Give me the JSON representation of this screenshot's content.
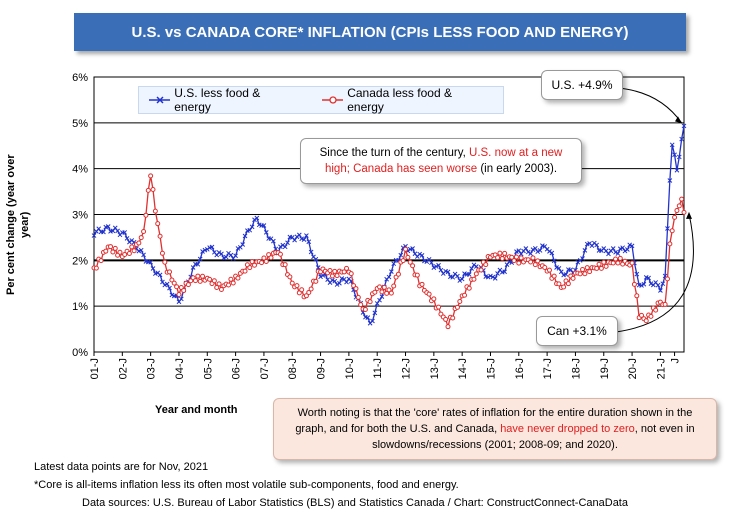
{
  "title": "U.S. vs CANADA CORE* INFLATION (CPIs LESS FOOD AND ENERGY)",
  "callouts": {
    "top_pre": "Since the turn of the century, ",
    "top_red": "U.S. now at a new high; Canada has seen worse",
    "top_post": " (in early 2003).",
    "us": "U.S. +4.9%",
    "canada": "Can +3.1%",
    "bottom_pre": "Worth noting is that the 'core' rates of inflation for the entire duration shown in the graph, and for both the U.S. and Canada, ",
    "bottom_red": "have never dropped to zero",
    "bottom_post": ", not even in slowdowns/recessions (2001; 2008-09; and 2020)."
  },
  "footnotes": {
    "latest": "Latest data points are for Nov, 2021",
    "core": "*Core is all-items inflation less its often most volatile sub-components, food and energy.",
    "sources": "Data sources: U.S. Bureau of Labor Statistics (BLS) and Statistics Canada / Chart: ConstructConnect-CanaData"
  },
  "colors": {
    "us": "#2233cc",
    "canada": "#e03030",
    "title_bg": "#3a6fb7"
  },
  "chart_data": {
    "type": "line",
    "xlabel": "Year and month",
    "ylabel": "Per cent change (year over year)",
    "ylim": [
      0,
      6
    ],
    "yticks": [
      "0%",
      "1%",
      "2%",
      "3%",
      "4%",
      "5%",
      "6%"
    ],
    "xticks": [
      "01-J",
      "02-J",
      "03-J",
      "04-J",
      "05-J",
      "06-J",
      "07-J",
      "08-J",
      "09-J",
      "10-J",
      "11-J",
      "12-J",
      "13-J",
      "14-J",
      "15-J",
      "16-J",
      "17-J",
      "18-J",
      "19-J",
      "20-J",
      "21-J",
      "J"
    ],
    "grid": true,
    "legend": "top-left",
    "reference_line": 2,
    "x_start": "2001-01",
    "x_end": "2021-11",
    "series": [
      {
        "name": "U.S. less food & energy",
        "marker": "x",
        "anchors": [
          [
            "2001-01",
            2.6
          ],
          [
            "2001-07",
            2.7
          ],
          [
            "2002-01",
            2.6
          ],
          [
            "2002-07",
            2.3
          ],
          [
            "2003-01",
            1.9
          ],
          [
            "2003-07",
            1.5
          ],
          [
            "2004-01",
            1.1
          ],
          [
            "2004-07",
            1.8
          ],
          [
            "2005-01",
            2.3
          ],
          [
            "2005-07",
            2.1
          ],
          [
            "2006-01",
            2.1
          ],
          [
            "2006-07",
            2.7
          ],
          [
            "2006-10",
            2.9
          ],
          [
            "2007-01",
            2.7
          ],
          [
            "2007-07",
            2.2
          ],
          [
            "2008-01",
            2.5
          ],
          [
            "2008-07",
            2.5
          ],
          [
            "2009-01",
            1.7
          ],
          [
            "2009-07",
            1.5
          ],
          [
            "2010-01",
            1.6
          ],
          [
            "2010-07",
            0.9
          ],
          [
            "2010-10",
            0.6
          ],
          [
            "2011-01",
            1.0
          ],
          [
            "2011-07",
            1.8
          ],
          [
            "2012-01",
            2.3
          ],
          [
            "2012-07",
            2.1
          ],
          [
            "2013-01",
            1.9
          ],
          [
            "2013-07",
            1.7
          ],
          [
            "2014-01",
            1.6
          ],
          [
            "2014-07",
            1.9
          ],
          [
            "2015-01",
            1.6
          ],
          [
            "2015-07",
            1.8
          ],
          [
            "2016-01",
            2.2
          ],
          [
            "2016-07",
            2.2
          ],
          [
            "2017-01",
            2.3
          ],
          [
            "2017-07",
            1.7
          ],
          [
            "2018-01",
            1.8
          ],
          [
            "2018-07",
            2.4
          ],
          [
            "2019-01",
            2.2
          ],
          [
            "2019-07",
            2.2
          ],
          [
            "2020-01",
            2.3
          ],
          [
            "2020-04",
            1.4
          ],
          [
            "2020-07",
            1.6
          ],
          [
            "2021-01",
            1.4
          ],
          [
            "2021-03",
            1.6
          ],
          [
            "2021-05",
            3.8
          ],
          [
            "2021-06",
            4.5
          ],
          [
            "2021-08",
            4.0
          ],
          [
            "2021-10",
            4.6
          ],
          [
            "2021-11",
            4.9
          ]
        ]
      },
      {
        "name": "Canada less food & energy",
        "marker": "o",
        "anchors": [
          [
            "2001-01",
            1.8
          ],
          [
            "2001-07",
            2.3
          ],
          [
            "2002-01",
            2.1
          ],
          [
            "2002-07",
            2.3
          ],
          [
            "2002-10",
            2.6
          ],
          [
            "2003-01",
            3.9
          ],
          [
            "2003-03",
            3.1
          ],
          [
            "2003-07",
            1.9
          ],
          [
            "2004-01",
            1.3
          ],
          [
            "2004-07",
            1.6
          ],
          [
            "2005-01",
            1.6
          ],
          [
            "2005-07",
            1.4
          ],
          [
            "2006-01",
            1.6
          ],
          [
            "2006-07",
            1.9
          ],
          [
            "2007-01",
            2.0
          ],
          [
            "2007-07",
            2.2
          ],
          [
            "2008-01",
            1.5
          ],
          [
            "2008-07",
            1.2
          ],
          [
            "2009-01",
            1.8
          ],
          [
            "2009-07",
            1.7
          ],
          [
            "2010-01",
            1.8
          ],
          [
            "2010-07",
            0.9
          ],
          [
            "2011-01",
            1.4
          ],
          [
            "2011-07",
            1.3
          ],
          [
            "2012-01",
            2.2
          ],
          [
            "2012-07",
            1.5
          ],
          [
            "2013-01",
            1.1
          ],
          [
            "2013-07",
            0.6
          ],
          [
            "2014-01",
            1.2
          ],
          [
            "2014-07",
            1.7
          ],
          [
            "2015-01",
            2.1
          ],
          [
            "2015-07",
            2.1
          ],
          [
            "2016-01",
            2.0
          ],
          [
            "2016-07",
            2.0
          ],
          [
            "2017-01",
            1.8
          ],
          [
            "2017-07",
            1.4
          ],
          [
            "2018-01",
            1.7
          ],
          [
            "2018-07",
            1.8
          ],
          [
            "2019-01",
            1.9
          ],
          [
            "2019-07",
            2.0
          ],
          [
            "2020-01",
            1.9
          ],
          [
            "2020-04",
            0.8
          ],
          [
            "2020-07",
            0.7
          ],
          [
            "2021-01",
            1.1
          ],
          [
            "2021-03",
            1.0
          ],
          [
            "2021-05",
            2.3
          ],
          [
            "2021-06",
            2.7
          ],
          [
            "2021-08",
            3.1
          ],
          [
            "2021-10",
            3.3
          ],
          [
            "2021-11",
            3.1
          ]
        ]
      }
    ]
  }
}
